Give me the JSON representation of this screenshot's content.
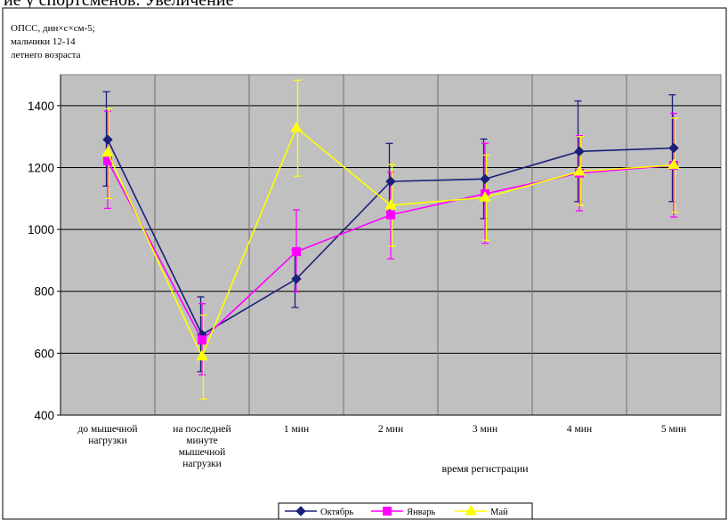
{
  "document": {
    "heading_fragment": "ие у спортсменов. Увеличение"
  },
  "chart_data": {
    "type": "line",
    "note_lines": [
      "ОПСС, дин×с×см-5;",
      "мальчики 12-14",
      "летнего возраста"
    ],
    "xlabel": "время регистрации",
    "ylabel": "",
    "ylim": [
      400,
      1500
    ],
    "yticks": [
      400,
      600,
      800,
      1000,
      1200,
      1400
    ],
    "grid": true,
    "legend_position": "bottom-center",
    "categories": [
      [
        "до мышечной",
        "нагрузки"
      ],
      [
        "на последней",
        "минуте",
        "мышечной",
        "нагрузки"
      ],
      [
        "1 мин"
      ],
      [
        "2 мин"
      ],
      [
        "3 мин"
      ],
      [
        "4 мин"
      ],
      [
        "5 мин"
      ]
    ],
    "series": [
      {
        "name": "Октябрь",
        "color": "#1a1f7a",
        "marker": "diamond",
        "values": [
          1290,
          660,
          840,
          1155,
          1163,
          1252,
          1263
        ],
        "error_low": [
          1140,
          540,
          748,
          1040,
          1035,
          1090,
          1090
        ],
        "error_high": [
          1445,
          782,
          935,
          1278,
          1292,
          1415,
          1435
        ]
      },
      {
        "name": "Январь",
        "color": "#ff00ff",
        "marker": "square",
        "values": [
          1222,
          643,
          928,
          1047,
          1115,
          1182,
          1207
        ],
        "error_low": [
          1068,
          530,
          798,
          905,
          955,
          1060,
          1040
        ],
        "error_high": [
          1382,
          760,
          1063,
          1185,
          1278,
          1303,
          1375
        ]
      },
      {
        "name": "Май",
        "color": "#ffff00",
        "marker": "triangle",
        "values": [
          1248,
          590,
          1328,
          1078,
          1103,
          1187,
          1208
        ],
        "error_low": [
          1100,
          452,
          1172,
          945,
          965,
          1078,
          1055
        ],
        "error_high": [
          1390,
          723,
          1482,
          1210,
          1240,
          1300,
          1360
        ]
      }
    ]
  }
}
